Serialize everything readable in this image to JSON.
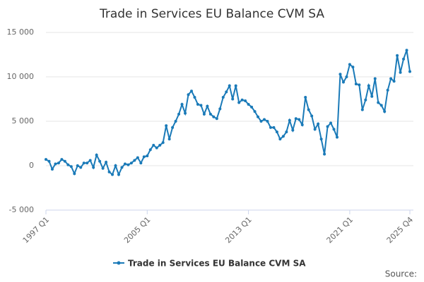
{
  "chart_data": {
    "type": "line",
    "title": "Trade in Services EU Balance CVM SA",
    "categories": [
      "1997 Q1",
      null,
      null,
      null,
      null,
      null,
      null,
      null,
      null,
      null,
      null,
      null,
      null,
      null,
      null,
      null,
      null,
      null,
      null,
      null,
      null,
      null,
      null,
      null,
      null,
      null,
      null,
      null,
      null,
      null,
      null,
      null,
      "2005 Q1",
      null,
      null,
      null,
      null,
      null,
      null,
      null,
      null,
      null,
      null,
      null,
      null,
      null,
      null,
      null,
      null,
      null,
      null,
      null,
      null,
      null,
      null,
      null,
      null,
      null,
      null,
      null,
      null,
      null,
      null,
      null,
      "2013 Q1",
      null,
      null,
      null,
      null,
      null,
      null,
      null,
      null,
      null,
      null,
      null,
      null,
      null,
      null,
      null,
      null,
      null,
      null,
      null,
      null,
      null,
      null,
      null,
      null,
      null,
      null,
      null,
      null,
      null,
      null,
      null,
      "2021 Q1",
      null,
      null,
      null,
      null,
      null,
      null,
      null,
      null,
      null,
      null,
      null,
      null,
      null,
      null,
      null,
      null,
      null,
      null,
      "2025 Q4"
    ],
    "series": [
      {
        "name": "Trade in Services EU Balance CVM SA",
        "color": "#1a7ab8",
        "values": [
          700,
          500,
          -400,
          200,
          300,
          700,
          500,
          100,
          -100,
          -900,
          0,
          -200,
          300,
          300,
          600,
          -200,
          1200,
          500,
          -300,
          400,
          -700,
          -1000,
          0,
          -1000,
          -200,
          200,
          100,
          300,
          600,
          900,
          300,
          1000,
          1100,
          1800,
          2300,
          2000,
          2300,
          2600,
          4500,
          3000,
          4300,
          5000,
          5800,
          6900,
          5900,
          8000,
          8400,
          7700,
          6900,
          6800,
          5800,
          6700,
          5800,
          5500,
          5300,
          6400,
          7700,
          8300,
          9000,
          7500,
          9000,
          7100,
          7400,
          7300,
          6900,
          6600,
          6100,
          5500,
          5000,
          5200,
          5000,
          4300,
          4300,
          3800,
          3000,
          3300,
          3800,
          5100,
          4000,
          5300,
          5200,
          4600,
          7700,
          6300,
          5600,
          4100,
          4700,
          3000,
          1300,
          4400,
          4800,
          4100,
          3200,
          10300,
          9400,
          10000,
          11400,
          11100,
          9200,
          9100,
          6300,
          7400,
          9000,
          7800,
          9800,
          7100,
          6800,
          6100,
          8500,
          9800,
          9500,
          12400,
          10500,
          12000,
          13000,
          10600
        ]
      }
    ],
    "ylim": [
      -5000,
      15000
    ],
    "yticks": [
      {
        "value": -5000,
        "label": "-5 000"
      },
      0,
      {
        "value": 5000,
        "label": "5 000"
      },
      {
        "value": 10000,
        "label": "10 000"
      },
      {
        "value": 15000,
        "label": "15 000"
      }
    ],
    "grid": true,
    "source": "Source:"
  }
}
